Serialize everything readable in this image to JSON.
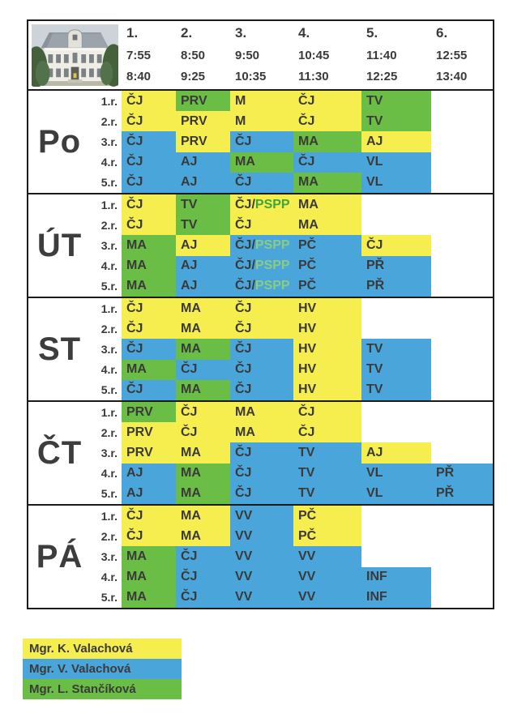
{
  "icons": {
    "photo": "school-building-photo"
  },
  "colors": {
    "yellow": "#F6EE4F",
    "blue": "#4AA6DA",
    "green": "#6BBE45",
    "pspp_on_yellow": "#3EA43E",
    "pspp_on_blue": "#8BCB82",
    "text": "#3A3A3A",
    "border": "#1C1C1C"
  },
  "header": {
    "periods": [
      {
        "num": "1.",
        "start": "7:55",
        "end": "8:40"
      },
      {
        "num": "2.",
        "start": "8:50",
        "end": "9:25"
      },
      {
        "num": "3.",
        "start": "9:50",
        "end": "10:35"
      },
      {
        "num": "4.",
        "start": "10:45",
        "end": "11:30"
      },
      {
        "num": "5.",
        "start": "11:40",
        "end": "12:25"
      },
      {
        "num": "6.",
        "start": "12:55",
        "end": "13:40"
      }
    ]
  },
  "days": [
    {
      "label": "Po",
      "rows": [
        {
          "grade": "1.r.",
          "cells": [
            {
              "s": "ČJ",
              "c": "yellow"
            },
            {
              "s": "PRV",
              "c": "green"
            },
            {
              "s": "M",
              "c": "yellow"
            },
            {
              "s": "ČJ",
              "c": "yellow"
            },
            {
              "s": "TV",
              "c": "green"
            },
            null
          ]
        },
        {
          "grade": "2.r.",
          "cells": [
            {
              "s": "ČJ",
              "c": "yellow"
            },
            {
              "s": "PRV",
              "c": "yellow"
            },
            {
              "s": "M",
              "c": "yellow"
            },
            {
              "s": "ČJ",
              "c": "yellow"
            },
            {
              "s": "TV",
              "c": "green"
            },
            null
          ]
        },
        {
          "grade": "3.r.",
          "cells": [
            {
              "s": "ČJ",
              "c": "blue"
            },
            {
              "s": "PRV",
              "c": "yellow"
            },
            {
              "s": "ČJ",
              "c": "blue"
            },
            {
              "s": "MA",
              "c": "green"
            },
            {
              "s": "AJ",
              "c": "yellow"
            },
            null
          ]
        },
        {
          "grade": "4.r.",
          "cells": [
            {
              "s": "ČJ",
              "c": "blue"
            },
            {
              "s": "AJ",
              "c": "blue"
            },
            {
              "s": "MA",
              "c": "green"
            },
            {
              "s": "ČJ",
              "c": "blue"
            },
            {
              "s": "VL",
              "c": "blue"
            },
            null
          ]
        },
        {
          "grade": "5.r.",
          "cells": [
            {
              "s": "ČJ",
              "c": "blue"
            },
            {
              "s": "AJ",
              "c": "blue"
            },
            {
              "s": "ČJ",
              "c": "blue"
            },
            {
              "s": "MA",
              "c": "green"
            },
            {
              "s": "VL",
              "c": "blue"
            },
            null
          ]
        }
      ]
    },
    {
      "label": "ÚT",
      "rows": [
        {
          "grade": "1.r.",
          "cells": [
            {
              "s": "ČJ",
              "c": "yellow"
            },
            {
              "s": "TV",
              "c": "green"
            },
            {
              "s": "ČJ/",
              "s2": "PSPP",
              "c": "yellow",
              "c2": "pspp_on_yellow"
            },
            {
              "s": "MA",
              "c": "yellow"
            },
            null,
            null
          ]
        },
        {
          "grade": "2.r.",
          "cells": [
            {
              "s": "ČJ",
              "c": "yellow"
            },
            {
              "s": "TV",
              "c": "green"
            },
            {
              "s": "ČJ",
              "c": "yellow"
            },
            {
              "s": "MA",
              "c": "yellow"
            },
            null,
            null
          ]
        },
        {
          "grade": "3.r.",
          "cells": [
            {
              "s": "MA",
              "c": "green"
            },
            {
              "s": "AJ",
              "c": "yellow"
            },
            {
              "s": "ČJ/",
              "s2": "PSPP",
              "c": "blue",
              "c2": "pspp_on_blue"
            },
            {
              "s": "PČ",
              "c": "blue"
            },
            {
              "s": "ČJ",
              "c": "yellow"
            },
            null
          ]
        },
        {
          "grade": "4.r.",
          "cells": [
            {
              "s": "MA",
              "c": "green"
            },
            {
              "s": "AJ",
              "c": "blue"
            },
            {
              "s": "ČJ/",
              "s2": "PSPP",
              "c": "blue",
              "c2": "pspp_on_blue"
            },
            {
              "s": "PČ",
              "c": "blue"
            },
            {
              "s": "PŘ",
              "c": "blue"
            },
            null
          ]
        },
        {
          "grade": "5.r.",
          "cells": [
            {
              "s": "MA",
              "c": "green"
            },
            {
              "s": "AJ",
              "c": "blue"
            },
            {
              "s": "ČJ/",
              "s2": "PSPP",
              "c": "blue",
              "c2": "pspp_on_blue"
            },
            {
              "s": "PČ",
              "c": "blue"
            },
            {
              "s": "PŘ",
              "c": "blue"
            },
            null
          ]
        }
      ]
    },
    {
      "label": "ST",
      "rows": [
        {
          "grade": "1.r.",
          "cells": [
            {
              "s": "ČJ",
              "c": "yellow"
            },
            {
              "s": "MA",
              "c": "yellow"
            },
            {
              "s": "ČJ",
              "c": "yellow"
            },
            {
              "s": "HV",
              "c": "yellow"
            },
            null,
            null
          ]
        },
        {
          "grade": "2.r.",
          "cells": [
            {
              "s": "ČJ",
              "c": "yellow"
            },
            {
              "s": "MA",
              "c": "yellow"
            },
            {
              "s": "ČJ",
              "c": "yellow"
            },
            {
              "s": "HV",
              "c": "yellow"
            },
            null,
            null
          ]
        },
        {
          "grade": "3.r.",
          "cells": [
            {
              "s": "ČJ",
              "c": "blue"
            },
            {
              "s": "MA",
              "c": "green"
            },
            {
              "s": "ČJ",
              "c": "blue"
            },
            {
              "s": "HV",
              "c": "yellow"
            },
            {
              "s": "TV",
              "c": "blue"
            },
            null
          ]
        },
        {
          "grade": "4.r.",
          "cells": [
            {
              "s": "MA",
              "c": "green"
            },
            {
              "s": "ČJ",
              "c": "blue"
            },
            {
              "s": "ČJ",
              "c": "blue"
            },
            {
              "s": "HV",
              "c": "yellow"
            },
            {
              "s": "TV",
              "c": "blue"
            },
            null
          ]
        },
        {
          "grade": "5.r.",
          "cells": [
            {
              "s": "ČJ",
              "c": "blue"
            },
            {
              "s": "MA",
              "c": "green"
            },
            {
              "s": "ČJ",
              "c": "blue"
            },
            {
              "s": "HV",
              "c": "yellow"
            },
            {
              "s": "TV",
              "c": "blue"
            },
            null
          ]
        }
      ]
    },
    {
      "label": "ČT",
      "rows": [
        {
          "grade": "1.r.",
          "cells": [
            {
              "s": "PRV",
              "c": "green"
            },
            {
              "s": "ČJ",
              "c": "yellow"
            },
            {
              "s": "MA",
              "c": "yellow"
            },
            {
              "s": "ČJ",
              "c": "yellow"
            },
            null,
            null
          ]
        },
        {
          "grade": "2.r.",
          "cells": [
            {
              "s": "PRV",
              "c": "yellow"
            },
            {
              "s": "ČJ",
              "c": "yellow"
            },
            {
              "s": "MA",
              "c": "yellow"
            },
            {
              "s": "ČJ",
              "c": "yellow"
            },
            null,
            null
          ]
        },
        {
          "grade": "3.r.",
          "cells": [
            {
              "s": "PRV",
              "c": "yellow"
            },
            {
              "s": "MA",
              "c": "yellow"
            },
            {
              "s": "ČJ",
              "c": "blue"
            },
            {
              "s": "TV",
              "c": "blue"
            },
            {
              "s": "AJ",
              "c": "yellow"
            },
            null
          ]
        },
        {
          "grade": "4.r.",
          "cells": [
            {
              "s": "AJ",
              "c": "blue"
            },
            {
              "s": "MA",
              "c": "green"
            },
            {
              "s": "ČJ",
              "c": "blue"
            },
            {
              "s": "TV",
              "c": "blue"
            },
            {
              "s": "VL",
              "c": "blue"
            },
            {
              "s": "PŘ",
              "c": "blue"
            }
          ]
        },
        {
          "grade": "5.r.",
          "cells": [
            {
              "s": "AJ",
              "c": "blue"
            },
            {
              "s": "MA",
              "c": "green"
            },
            {
              "s": "ČJ",
              "c": "blue"
            },
            {
              "s": "TV",
              "c": "blue"
            },
            {
              "s": "VL",
              "c": "blue"
            },
            {
              "s": "PŘ",
              "c": "blue"
            }
          ]
        }
      ]
    },
    {
      "label": "PÁ",
      "rows": [
        {
          "grade": "1.r.",
          "cells": [
            {
              "s": "ČJ",
              "c": "yellow"
            },
            {
              "s": "MA",
              "c": "yellow"
            },
            {
              "s": "VV",
              "c": "blue"
            },
            {
              "s": "PČ",
              "c": "yellow"
            },
            null,
            null
          ]
        },
        {
          "grade": "2.r.",
          "cells": [
            {
              "s": "ČJ",
              "c": "yellow"
            },
            {
              "s": "MA",
              "c": "yellow"
            },
            {
              "s": "VV",
              "c": "blue"
            },
            {
              "s": "PČ",
              "c": "yellow"
            },
            null,
            null
          ]
        },
        {
          "grade": "3.r.",
          "cells": [
            {
              "s": "MA",
              "c": "green"
            },
            {
              "s": "ČJ",
              "c": "blue"
            },
            {
              "s": "VV",
              "c": "blue"
            },
            {
              "s": "VV",
              "c": "blue"
            },
            null,
            null
          ]
        },
        {
          "grade": "4.r.",
          "cells": [
            {
              "s": "MA",
              "c": "green"
            },
            {
              "s": "ČJ",
              "c": "blue"
            },
            {
              "s": "VV",
              "c": "blue"
            },
            {
              "s": "VV",
              "c": "blue"
            },
            {
              "s": "INF",
              "c": "blue"
            },
            null
          ]
        },
        {
          "grade": "5.r.",
          "cells": [
            {
              "s": "MA",
              "c": "green"
            },
            {
              "s": "ČJ",
              "c": "blue"
            },
            {
              "s": "VV",
              "c": "blue"
            },
            {
              "s": "VV",
              "c": "blue"
            },
            {
              "s": "INF",
              "c": "blue"
            },
            null
          ]
        }
      ]
    }
  ],
  "legend": [
    {
      "label": "Mgr. K. Valachová",
      "color": "yellow"
    },
    {
      "label": "Mgr. V. Valachová",
      "color": "blue"
    },
    {
      "label": "Mgr. L. Stančíková",
      "color": "green"
    }
  ]
}
